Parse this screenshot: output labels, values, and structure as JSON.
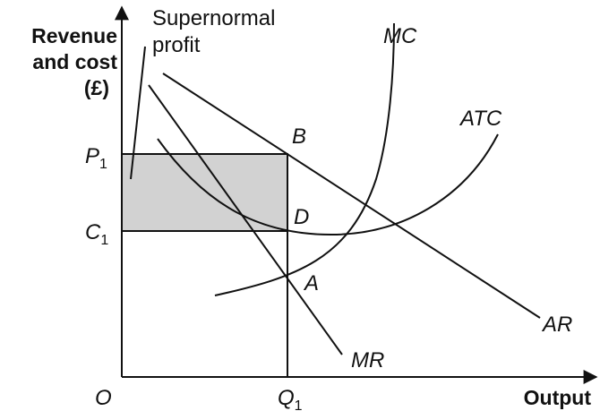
{
  "axes": {
    "y_label": [
      "Revenue",
      "and cost",
      "(£)"
    ],
    "x_label": "Output",
    "origin": "O"
  },
  "levels": {
    "p1": {
      "letter": "P",
      "subscript": "1"
    },
    "c1": {
      "letter": "C",
      "subscript": "1"
    },
    "q1": {
      "letter": "Q",
      "subscript": "1"
    }
  },
  "annotation": [
    "Supernormal",
    "profit"
  ],
  "curves": {
    "mc": "MC",
    "atc": "ATC",
    "ar": "AR",
    "mr": "MR"
  },
  "points": {
    "b": "B",
    "d": "D",
    "a": "A"
  }
}
